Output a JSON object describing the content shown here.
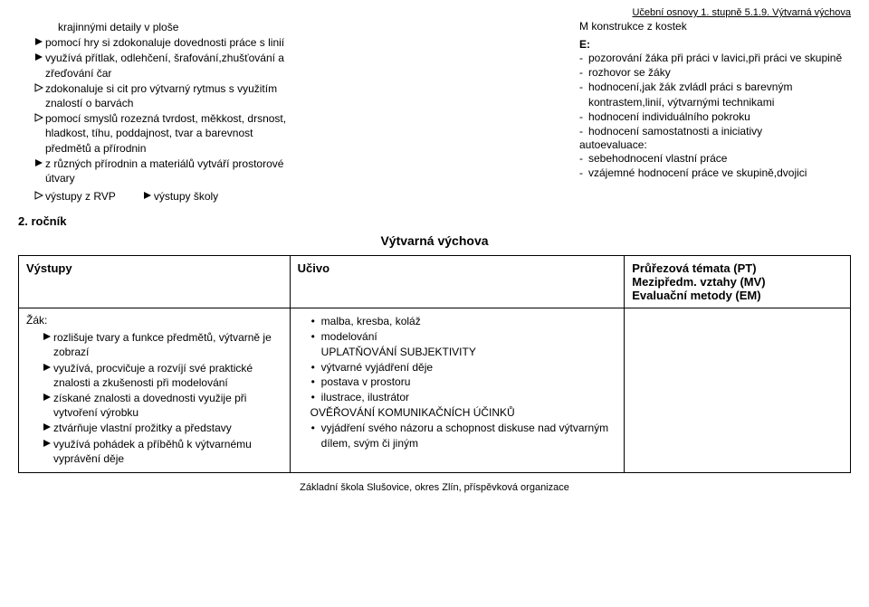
{
  "header_right": "Učební osnovy 1. stupně  5.1.9. Výtvarná výchova",
  "top_left_items": [
    {
      "style": "plain",
      "indent": true,
      "text": "krajinnými detaily v ploše"
    },
    {
      "style": "solid",
      "indent": false,
      "text": "pomocí hry si zdokonaluje dovednosti práce s linií"
    },
    {
      "style": "solid",
      "indent": false,
      "text": "využívá přítlak, odlehčení, šrafování,zhušťování a zřeďování čar"
    },
    {
      "style": "outline",
      "indent": false,
      "text": "zdokonaluje si  cit pro výtvarný rytmus s využitím znalostí o barvách"
    },
    {
      "style": "outline",
      "indent": false,
      "text": "pomocí smyslů rozezná tvrdost, měkkost, drsnost, hladkost, tíhu, poddajnost, tvar a barevnost předmětů a přírodnin"
    },
    {
      "style": "solid",
      "indent": false,
      "text": "z různých přírodnin a materiálů vytváří prostorové útvary"
    }
  ],
  "inline_left": {
    "label": "výstupy z RVP"
  },
  "inline_right": {
    "label": "výstupy školy"
  },
  "right_title": "M   konstrukce z kostek",
  "right_e_label": "E:",
  "right_dashes": [
    {
      "indent": false,
      "text": "pozorování žáka při práci v lavici,při práci ve skupině"
    },
    {
      "indent": false,
      "text": "rozhovor se žáky"
    },
    {
      "indent": false,
      "text": "hodnocení,jak žák zvládl práci s barevným kontrastem,linií, výtvarnými technikami"
    },
    {
      "indent": false,
      "text": "hodnocení individuálního pokroku"
    },
    {
      "indent": false,
      "text": "hodnocení samostatnosti a iniciativy"
    }
  ],
  "right_autoeval": "autoevaluace:",
  "right_dashes2": [
    {
      "indent": false,
      "text": "sebehodnocení vlastní práce"
    },
    {
      "indent": false,
      "text": "vzájemné hodnocení práce ve skupině,dvojici"
    }
  ],
  "grade_label": "2. ročník",
  "subject_title": "Výtvarná výchova",
  "th_vystupy": "Výstupy",
  "th_ucivo": "Učivo",
  "th_pt_line1": "Průřezová témata (PT)",
  "th_pt_line2": "Mezipředm. vztahy (MV)",
  "th_pt_line3": "Evaluační metody (EM)",
  "zak_label": "Žák:",
  "vystupy_items": [
    "rozlišuje tvary a funkce předmětů, výtvarně je zobrazí",
    "využívá, procvičuje a rozvíjí své praktické znalosti a zkušenosti při modelování",
    "získané znalosti a dovednosti využije při vytvoření výrobku",
    "ztvárňuje vlastní prožitky a představy",
    "využívá pohádek a příběhů k výtvarnému vyprávění děje"
  ],
  "ucivo_block1": [
    "malba, kresba, koláž",
    "modelování"
  ],
  "ucivo_heading1": "UPLATŇOVÁNÍ SUBJEKTIVITY",
  "ucivo_block2": [
    "výtvarné vyjádření děje",
    "postava v prostoru",
    "ilustrace, ilustrátor"
  ],
  "ucivo_heading2": "OVĚŘOVÁNÍ KOMUNIKAČNÍCH ÚČINKŮ",
  "ucivo_block3": [
    "vyjádření svého názoru a schopnost diskuse nad výtvarným dílem, svým či jiným"
  ],
  "footer": "Základní škola Slušovice, okres Zlín, příspěvková organizace"
}
